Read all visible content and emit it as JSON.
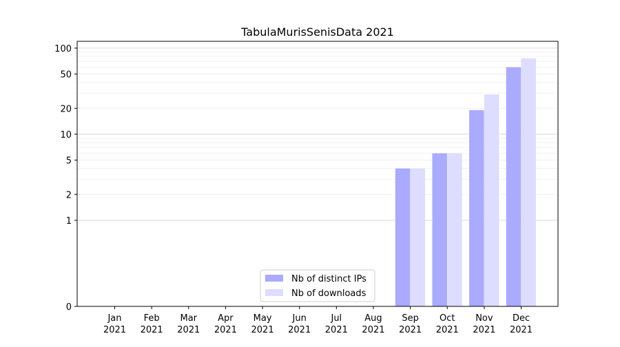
{
  "chart_data": {
    "type": "bar",
    "title": "TabulaMurisSenisData 2021",
    "xlabel": "",
    "ylabel": "",
    "yscale": "symlog",
    "ylim": [
      0,
      120
    ],
    "yticks": [
      0,
      1,
      2,
      5,
      10,
      20,
      50,
      100
    ],
    "ytick_labels": [
      "0",
      "1",
      "2",
      "5",
      "10",
      "20",
      "50",
      "100"
    ],
    "categories": [
      [
        "Jan",
        "2021"
      ],
      [
        "Feb",
        "2021"
      ],
      [
        "Mar",
        "2021"
      ],
      [
        "Apr",
        "2021"
      ],
      [
        "May",
        "2021"
      ],
      [
        "Jun",
        "2021"
      ],
      [
        "Jul",
        "2021"
      ],
      [
        "Aug",
        "2021"
      ],
      [
        "Sep",
        "2021"
      ],
      [
        "Oct",
        "2021"
      ],
      [
        "Nov",
        "2021"
      ],
      [
        "Dec",
        "2021"
      ]
    ],
    "series": [
      {
        "name": "Nb of distinct IPs",
        "color": "#aaaaff",
        "values": [
          0,
          0,
          0,
          0,
          0,
          0,
          0,
          0,
          4,
          6,
          19,
          60
        ]
      },
      {
        "name": "Nb of downloads",
        "color": "#ddddff",
        "values": [
          0,
          0,
          0,
          0,
          0,
          0,
          0,
          0,
          4,
          6,
          29,
          76
        ]
      }
    ],
    "grid": true,
    "legend_position": "lower-center"
  }
}
